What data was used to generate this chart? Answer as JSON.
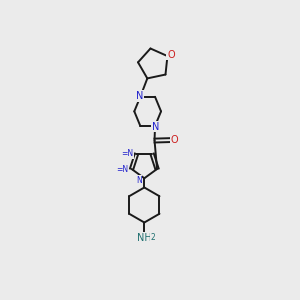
{
  "background_color": "#ebebeb",
  "bond_color": "#1a1a1a",
  "N_color": "#2020cc",
  "O_color": "#cc2020",
  "NH2_color": "#207070",
  "font_size_atoms": 7.0,
  "font_size_sub": 5.5,
  "linewidth": 1.4,
  "xlim": [
    0.25,
    0.82
  ],
  "ylim": [
    0.02,
    0.97
  ]
}
